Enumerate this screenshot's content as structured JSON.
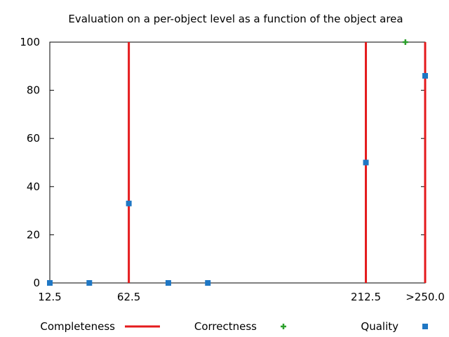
{
  "chart_data": {
    "type": "scatter",
    "title": "Evaluation on a per-object level as a function of the object area",
    "xlabel": "",
    "ylabel": "",
    "xlim": [
      12.5,
      250.0
    ],
    "ylim": [
      0,
      100
    ],
    "xticks": [
      {
        "value": 12.5,
        "label": "12.5"
      },
      {
        "value": 62.5,
        "label": "62.5"
      },
      {
        "value": 212.5,
        "label": "212.5"
      },
      {
        "value": 250.0,
        "label": ">250.0"
      }
    ],
    "yticks": [
      0,
      20,
      40,
      60,
      80,
      100
    ],
    "grid": false,
    "legend_position": "bottom",
    "series": [
      {
        "name": "Completeness",
        "style": "impulses",
        "color": "#e41a1c",
        "x": [
          62.5,
          212.5,
          250.0
        ],
        "y": [
          100,
          100,
          100
        ]
      },
      {
        "name": "Correctness",
        "style": "plus",
        "color": "#2ca02c",
        "x": [
          237.5
        ],
        "y": [
          100
        ]
      },
      {
        "name": "Quality",
        "style": "square",
        "color": "#1f77c4",
        "x": [
          12.5,
          37.5,
          62.5,
          87.5,
          112.5,
          212.5,
          250.0
        ],
        "y": [
          0,
          0,
          33,
          0,
          0,
          50,
          86
        ]
      }
    ]
  }
}
